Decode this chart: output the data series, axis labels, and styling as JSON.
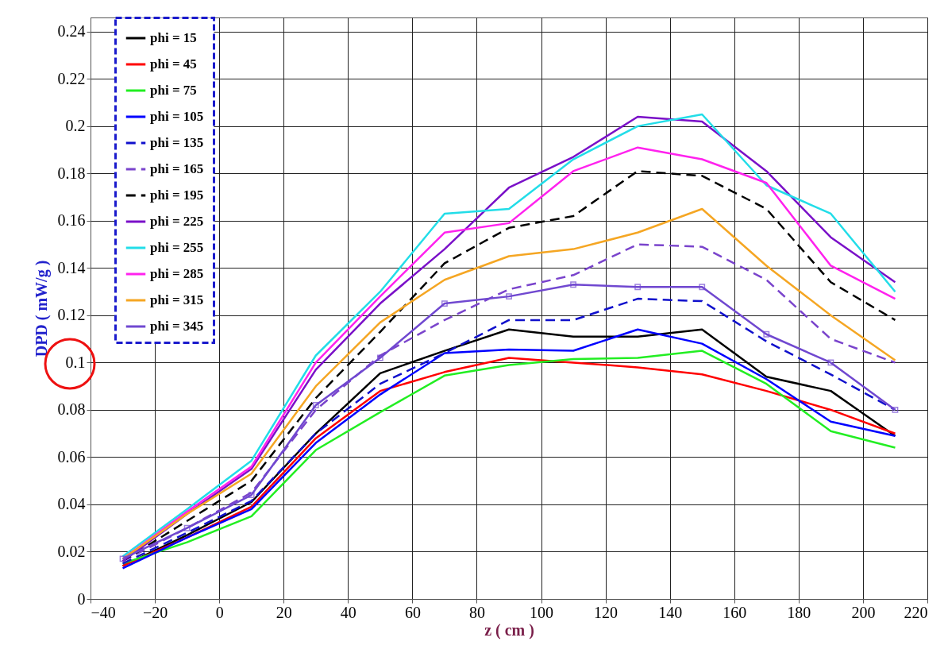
{
  "chart_data": {
    "type": "line",
    "xlabel": "z ( cm )",
    "ylabel": "DPD ( mW/g )",
    "x": [
      -30,
      -10,
      10,
      30,
      50,
      70,
      90,
      110,
      130,
      150,
      170,
      190,
      210
    ],
    "xlim": [
      -40,
      220
    ],
    "xticks": [
      -40,
      -20,
      0,
      20,
      40,
      60,
      80,
      100,
      120,
      140,
      160,
      180,
      200,
      220
    ],
    "ylim": [
      0,
      0.246
    ],
    "yticks": [
      0,
      0.02,
      0.04,
      0.06,
      0.08,
      0.1,
      0.12,
      0.14,
      0.16,
      0.18,
      0.2,
      0.22,
      0.24
    ],
    "grid": true,
    "legend": "top left",
    "series": [
      {
        "name": "phi = 15",
        "color": "#000000",
        "line_style": "solid",
        "values": [
          0.014,
          0.027,
          0.041,
          0.07,
          0.0955,
          0.105,
          0.114,
          0.111,
          0.111,
          0.114,
          0.094,
          0.088,
          0.069
        ]
      },
      {
        "name": "phi = 45",
        "color": "#ff0000",
        "line_style": "solid",
        "values": [
          0.014,
          0.026,
          0.039,
          0.068,
          0.088,
          0.096,
          0.102,
          0.1,
          0.098,
          0.095,
          0.088,
          0.08,
          0.07
        ]
      },
      {
        "name": "phi = 75",
        "color": "#22ee22",
        "line_style": "solid",
        "values": [
          0.015,
          0.024,
          0.035,
          0.063,
          0.079,
          0.0945,
          0.099,
          0.1015,
          0.102,
          0.105,
          0.091,
          0.071,
          0.064
        ]
      },
      {
        "name": "phi = 105",
        "color": "#0000ff",
        "line_style": "solid",
        "values": [
          0.013,
          0.026,
          0.038,
          0.066,
          0.0865,
          0.104,
          0.1055,
          0.105,
          0.114,
          0.108,
          0.093,
          0.075,
          0.069
        ]
      },
      {
        "name": "phi = 135",
        "color": "#1010cc",
        "line_style": "dashed",
        "values": [
          0.015,
          0.028,
          0.0415,
          0.07,
          0.091,
          0.104,
          0.118,
          0.118,
          0.127,
          0.126,
          0.109,
          0.095,
          0.08
        ]
      },
      {
        "name": "phi = 165",
        "color": "#7a44cc",
        "line_style": "dashed",
        "values": [
          0.016,
          0.03,
          0.045,
          0.08,
          0.103,
          0.118,
          0.131,
          0.137,
          0.15,
          0.149,
          0.135,
          0.11,
          0.1
        ]
      },
      {
        "name": "phi = 195",
        "color": "#000000",
        "line_style": "dashed",
        "values": [
          0.016,
          0.033,
          0.05,
          0.085,
          0.113,
          0.142,
          0.157,
          0.162,
          0.181,
          0.179,
          0.165,
          0.134,
          0.118
        ]
      },
      {
        "name": "phi = 225",
        "color": "#7a10c8",
        "line_style": "solid",
        "values": [
          0.016,
          0.036,
          0.055,
          0.097,
          0.125,
          0.148,
          0.174,
          0.187,
          0.204,
          0.202,
          0.181,
          0.153,
          0.134
        ]
      },
      {
        "name": "phi = 255",
        "color": "#22dde8",
        "line_style": "solid",
        "values": [
          0.018,
          0.038,
          0.0585,
          0.103,
          0.13,
          0.163,
          0.165,
          0.186,
          0.2,
          0.205,
          0.175,
          0.163,
          0.13
        ]
      },
      {
        "name": "phi = 285",
        "color": "#ff22ee",
        "line_style": "solid",
        "values": [
          0.017,
          0.037,
          0.056,
          0.1,
          0.128,
          0.155,
          0.159,
          0.181,
          0.191,
          0.186,
          0.176,
          0.141,
          0.127
        ]
      },
      {
        "name": "phi = 315",
        "color": "#f5a623",
        "line_style": "solid",
        "values": [
          0.017,
          0.036,
          0.053,
          0.09,
          0.117,
          0.135,
          0.145,
          0.148,
          0.155,
          0.165,
          0.141,
          0.12,
          0.101
        ]
      },
      {
        "name": "phi = 345",
        "color": "#7048d0",
        "line_style": "solid",
        "marker": "square",
        "values": [
          0.017,
          0.03,
          0.044,
          0.082,
          0.102,
          0.125,
          0.128,
          0.133,
          0.132,
          0.132,
          0.112,
          0.1,
          0.08
        ]
      }
    ]
  }
}
